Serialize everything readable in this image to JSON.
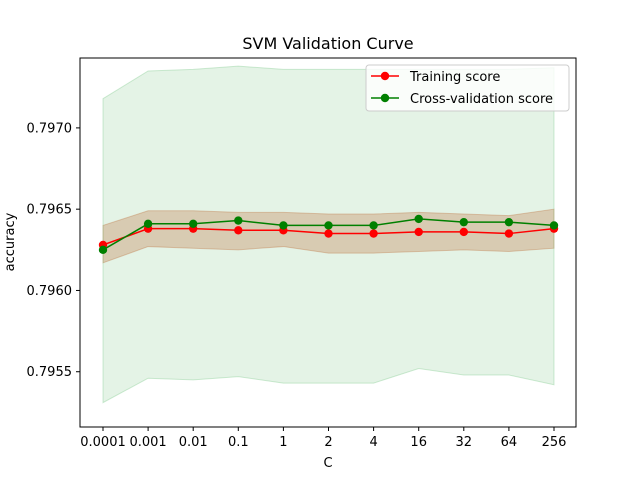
{
  "chart_data": {
    "type": "line",
    "title": "SVM Validation Curve",
    "xlabel": "C",
    "ylabel": "accuracy",
    "categories": [
      "0.0001",
      "0.001",
      "0.01",
      "0.1",
      "1",
      "2",
      "4",
      "16",
      "32",
      "64",
      "256"
    ],
    "ylim": [
      0.79516,
      0.79743
    ],
    "yticks": [
      "0.7955",
      "0.7960",
      "0.7965",
      "0.7970"
    ],
    "ytick_values": [
      0.7955,
      0.796,
      0.7965,
      0.797
    ],
    "grid": false,
    "legend_position": "upper-right",
    "series": [
      {
        "name": "Training score",
        "color": "#ff0000",
        "band_color": "#cd5c2c",
        "values": [
          0.79628,
          0.79638,
          0.79638,
          0.79637,
          0.79637,
          0.79635,
          0.79635,
          0.79636,
          0.79636,
          0.79635,
          0.79638
        ],
        "band_low": [
          0.79617,
          0.79627,
          0.79626,
          0.79625,
          0.79627,
          0.79623,
          0.79623,
          0.79624,
          0.79625,
          0.79624,
          0.79626
        ],
        "band_high": [
          0.7964,
          0.79649,
          0.79649,
          0.79648,
          0.79648,
          0.79647,
          0.79647,
          0.79648,
          0.79647,
          0.79646,
          0.7965
        ]
      },
      {
        "name": "Cross-validation score",
        "color": "#008000",
        "band_color": "#76c583",
        "values": [
          0.79625,
          0.79641,
          0.79641,
          0.79643,
          0.7964,
          0.7964,
          0.7964,
          0.79644,
          0.79642,
          0.79642,
          0.7964
        ],
        "band_low": [
          0.79531,
          0.79546,
          0.79545,
          0.79547,
          0.79543,
          0.79543,
          0.79543,
          0.79552,
          0.79548,
          0.79548,
          0.79542
        ],
        "band_high": [
          0.79718,
          0.79735,
          0.79736,
          0.79738,
          0.79736,
          0.79736,
          0.79736,
          0.79736,
          0.79736,
          0.79736,
          0.79737
        ]
      }
    ]
  }
}
